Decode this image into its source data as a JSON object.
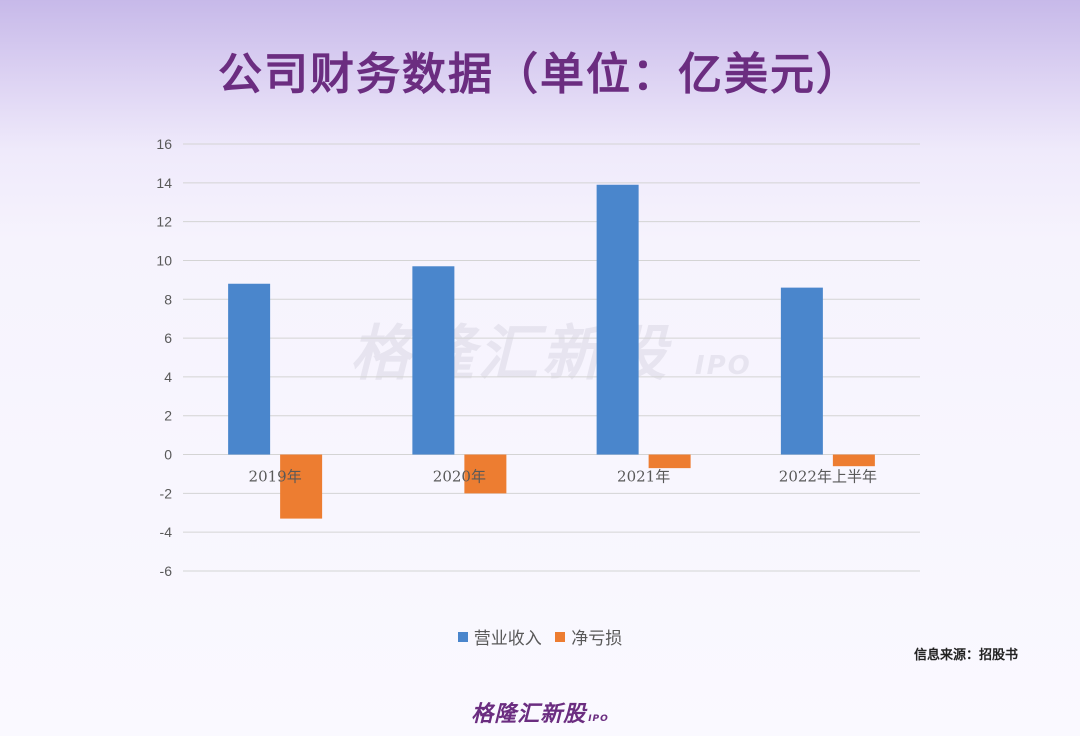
{
  "title": "公司财务数据（单位：亿美元）",
  "watermark": {
    "text": "格隆汇新股",
    "sub": "IPO"
  },
  "source": "信息来源：招股书",
  "logo": {
    "text": "格隆汇新股",
    "sub": "IPO"
  },
  "colors": {
    "revenue": "#4a86cc",
    "net_loss": "#ed7d31",
    "title": "#6b2d80"
  },
  "chart_data": {
    "type": "bar",
    "categories": [
      "2019年",
      "2020年",
      "2021年",
      "2022年上半年"
    ],
    "series": [
      {
        "name": "营业收入",
        "values": [
          8.8,
          9.7,
          13.9,
          8.6
        ]
      },
      {
        "name": "净亏损",
        "values": [
          -3.3,
          -2.0,
          -0.7,
          -0.6
        ]
      }
    ],
    "ylim": [
      -6,
      16
    ],
    "yticks": [
      16,
      14,
      12,
      10,
      8,
      6,
      4,
      2,
      0,
      -2,
      -4,
      -6
    ],
    "grid": true,
    "legend": "bottom"
  }
}
